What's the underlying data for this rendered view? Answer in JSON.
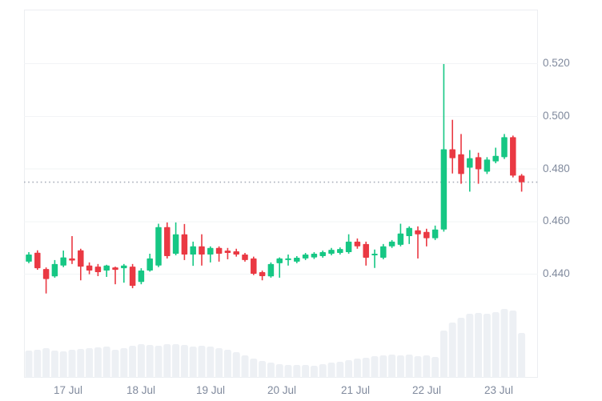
{
  "chart_data": {
    "type": "candlestick",
    "title": "",
    "xlabel": "",
    "ylabel": "",
    "x_tick_labels": [
      "17 Jul",
      "18 Jul",
      "19 Jul",
      "20 Jul",
      "21 Jul",
      "22 Jul",
      "23 Jul"
    ],
    "y_tick_labels": [
      "0.520",
      "0.500",
      "0.480",
      "0.460",
      "0.440"
    ],
    "y_tick_values": [
      0.52,
      0.5,
      0.48,
      0.46,
      0.44
    ],
    "current_price_dotted_line": 0.4748,
    "grid": true,
    "legend": false,
    "y_axis_side": "right",
    "candles_ohlc": [
      [
        0.4446,
        0.4482,
        0.444,
        0.4473
      ],
      [
        0.448,
        0.4489,
        0.4415,
        0.4421
      ],
      [
        0.4418,
        0.4424,
        0.4325,
        0.438
      ],
      [
        0.439,
        0.4452,
        0.4385,
        0.4437
      ],
      [
        0.4431,
        0.4488,
        0.4425,
        0.4462
      ],
      [
        0.4458,
        0.4543,
        0.4437,
        0.445
      ],
      [
        0.4489,
        0.4495,
        0.4375,
        0.4427
      ],
      [
        0.4431,
        0.4443,
        0.4398,
        0.4412
      ],
      [
        0.4427,
        0.4437,
        0.4391,
        0.4406
      ],
      [
        0.4412,
        0.4434,
        0.4388,
        0.4431
      ],
      [
        0.4424,
        0.4427,
        0.436,
        0.4415
      ],
      [
        0.4421,
        0.4437,
        0.4366,
        0.4431
      ],
      [
        0.4427,
        0.4437,
        0.4345,
        0.4354
      ],
      [
        0.4369,
        0.4421,
        0.436,
        0.4412
      ],
      [
        0.4412,
        0.4476,
        0.4408,
        0.4458
      ],
      [
        0.4431,
        0.459,
        0.4425,
        0.4577
      ],
      [
        0.4577,
        0.4595,
        0.4458,
        0.4467
      ],
      [
        0.4476,
        0.4595,
        0.447,
        0.455
      ],
      [
        0.455,
        0.4589,
        0.4452,
        0.4473
      ],
      [
        0.4473,
        0.4522,
        0.443,
        0.4504
      ],
      [
        0.4504,
        0.455,
        0.4431,
        0.4473
      ],
      [
        0.4473,
        0.4504,
        0.4443,
        0.4498
      ],
      [
        0.4498,
        0.4504,
        0.4446,
        0.4476
      ],
      [
        0.4488,
        0.4498,
        0.4455,
        0.4479
      ],
      [
        0.4485,
        0.4495,
        0.4465,
        0.4473
      ],
      [
        0.4473,
        0.4479,
        0.4446,
        0.4452
      ],
      [
        0.4458,
        0.4465,
        0.4395,
        0.44
      ],
      [
        0.4406,
        0.4412,
        0.4375,
        0.4391
      ],
      [
        0.439,
        0.4443,
        0.4385,
        0.4437
      ],
      [
        0.444,
        0.4462,
        0.4385,
        0.4458
      ],
      [
        0.4452,
        0.4473,
        0.4431,
        0.4458
      ],
      [
        0.4446,
        0.4467,
        0.444,
        0.4461
      ],
      [
        0.4458,
        0.4479,
        0.4452,
        0.4473
      ],
      [
        0.4462,
        0.4482,
        0.4456,
        0.4476
      ],
      [
        0.4467,
        0.4488,
        0.4461,
        0.4482
      ],
      [
        0.4476,
        0.4498,
        0.447,
        0.4491
      ],
      [
        0.4479,
        0.45,
        0.4473,
        0.4494
      ],
      [
        0.4482,
        0.455,
        0.4476,
        0.4522
      ],
      [
        0.4522,
        0.4534,
        0.4495,
        0.4504
      ],
      [
        0.4513,
        0.4522,
        0.4431,
        0.4461
      ],
      [
        0.447,
        0.4492,
        0.4422,
        0.4476
      ],
      [
        0.4461,
        0.4513,
        0.4455,
        0.4504
      ],
      [
        0.4504,
        0.4528,
        0.4498,
        0.4522
      ],
      [
        0.451,
        0.459,
        0.4504,
        0.4553
      ],
      [
        0.4543,
        0.458,
        0.4513,
        0.4574
      ],
      [
        0.4565,
        0.458,
        0.4458,
        0.455
      ],
      [
        0.4559,
        0.4571,
        0.4504,
        0.4535
      ],
      [
        0.4535,
        0.4583,
        0.4528,
        0.4568
      ],
      [
        0.4568,
        0.5197,
        0.456,
        0.4873
      ],
      [
        0.4873,
        0.4985,
        0.4781,
        0.4839
      ],
      [
        0.4854,
        0.4931,
        0.4742,
        0.4779
      ],
      [
        0.4803,
        0.487,
        0.4712,
        0.4839
      ],
      [
        0.4843,
        0.486,
        0.4742,
        0.4797
      ],
      [
        0.4788,
        0.4843,
        0.4779,
        0.4834
      ],
      [
        0.4827,
        0.4879,
        0.482,
        0.4848
      ],
      [
        0.4843,
        0.4931,
        0.4836,
        0.4919
      ],
      [
        0.4919,
        0.4925,
        0.4766,
        0.4773
      ],
      [
        0.4773,
        0.4779,
        0.4712,
        0.4748
      ]
    ],
    "volumes_relative": [
      34,
      35,
      37,
      34,
      33,
      35,
      36,
      37,
      38,
      39,
      35,
      37,
      40,
      42,
      41,
      40,
      42,
      42,
      41,
      39,
      40,
      39,
      37,
      35,
      32,
      28,
      24,
      21,
      19,
      17,
      16,
      16,
      16,
      15,
      17,
      19,
      20,
      22,
      24,
      25,
      27,
      28,
      29,
      28,
      29,
      27,
      28,
      26,
      59,
      69,
      75,
      80,
      81,
      80,
      82,
      86,
      84,
      56
    ],
    "colors": {
      "up": "#16c784",
      "down": "#ea3943",
      "volume_bar": "#edf0f4",
      "grid_line": "#f2f4f6",
      "plot_border": "#eceef1",
      "axis_text": "#808a9d",
      "dotted_price_line": "#a9afbb",
      "background": "#ffffff"
    }
  }
}
